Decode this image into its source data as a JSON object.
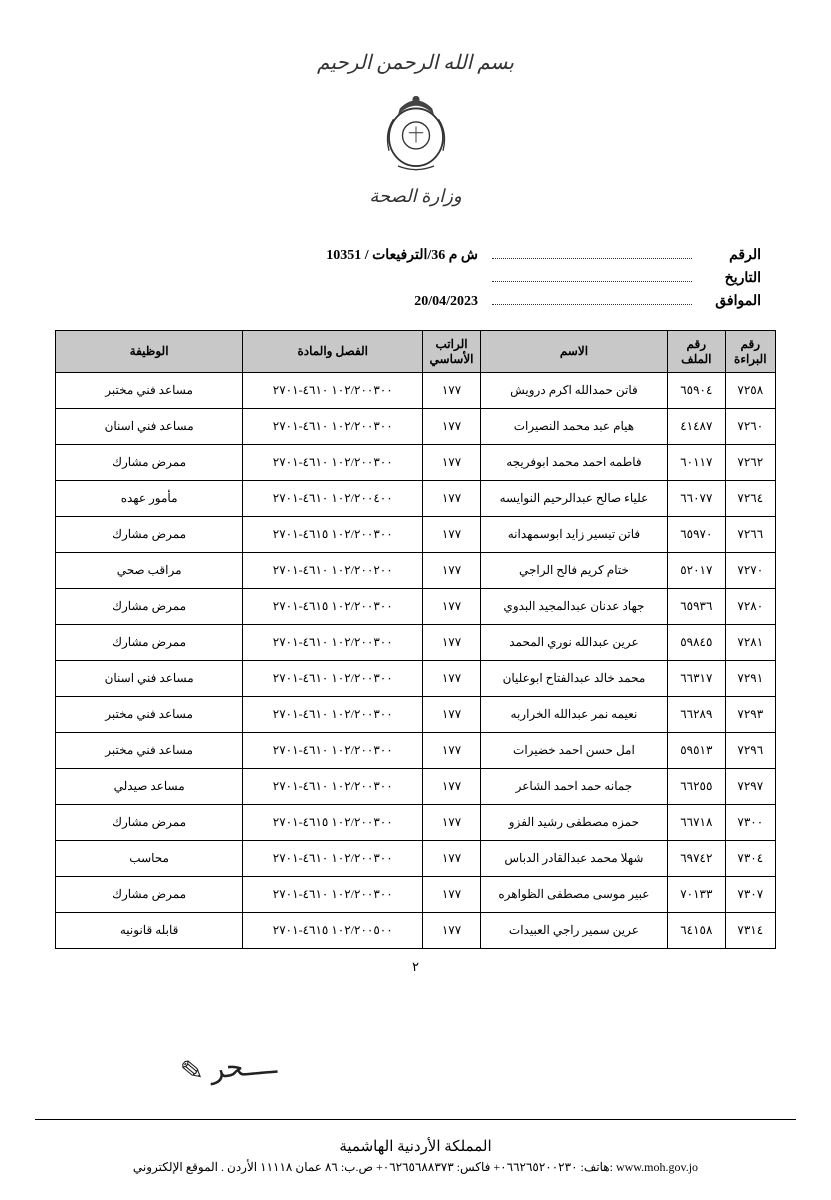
{
  "header": {
    "top_text": "بسم الله الرحمن الرحيم",
    "bottom_text": "وزارة الصحة"
  },
  "meta": {
    "number_label": "الرقم",
    "number_value": "ش م 36/الترفيعات / 10351",
    "date_label": "التاريخ",
    "date_value": "",
    "approve_label": "الموافق",
    "approve_value": "20/04/2023"
  },
  "table": {
    "headers": {
      "serial": "رقم البراءة",
      "file": "رقم الملف",
      "name": "الاسم",
      "salary": "الراتب الأساسي",
      "chapter": "الفصل والمادة",
      "job": "الوظيفة"
    },
    "rows": [
      {
        "serial": "٧٢٥٨",
        "file": "٦٥٩٠٤",
        "name": "فاتن حمدالله اكرم درويش",
        "salary": "١٧٧",
        "chapter": "١٠٢/٢٠٠٣٠٠ ٤٦١٠-٢٧٠١",
        "job": "مساعد فني مختبر"
      },
      {
        "serial": "٧٢٦٠",
        "file": "٤١٤٨٧",
        "name": "هيام عبد محمد النصيرات",
        "salary": "١٧٧",
        "chapter": "١٠٢/٢٠٠٣٠٠ ٤٦١٠-٢٧٠١",
        "job": "مساعد فني اسنان"
      },
      {
        "serial": "٧٢٦٢",
        "file": "٦٠١١٧",
        "name": "فاطمه احمد محمد ابوفريجه",
        "salary": "١٧٧",
        "chapter": "١٠٢/٢٠٠٣٠٠ ٤٦١٠-٢٧٠١",
        "job": "ممرض مشارك"
      },
      {
        "serial": "٧٢٦٤",
        "file": "٦٦٠٧٧",
        "name": "علياء صالح عبدالرحيم النوايسه",
        "salary": "١٧٧",
        "chapter": "١٠٢/٢٠٠٤٠٠ ٤٦١٠-٢٧٠١",
        "job": "مأمور عهده"
      },
      {
        "serial": "٧٢٦٦",
        "file": "٦٥٩٧٠",
        "name": "فاتن تيسير زايد ابوسمهدانه",
        "salary": "١٧٧",
        "chapter": "١٠٢/٢٠٠٣٠٠ ٤٦١٥-٢٧٠١",
        "job": "ممرض مشارك"
      },
      {
        "serial": "٧٢٧٠",
        "file": "٥٢٠١٧",
        "name": "ختام كريم فالح الراجي",
        "salary": "١٧٧",
        "chapter": "١٠٢/٢٠٠٢٠٠ ٤٦١٠-٢٧٠١",
        "job": "مراقب صحي"
      },
      {
        "serial": "٧٢٨٠",
        "file": "٦٥٩٣٦",
        "name": "جهاد عدنان عبدالمجيد البدوي",
        "salary": "١٧٧",
        "chapter": "١٠٢/٢٠٠٣٠٠ ٤٦١٥-٢٧٠١",
        "job": "ممرض مشارك"
      },
      {
        "serial": "٧٢٨١",
        "file": "٥٩٨٤٥",
        "name": "عرين عبدالله نوري المحمد",
        "salary": "١٧٧",
        "chapter": "١٠٢/٢٠٠٣٠٠ ٤٦١٠-٢٧٠١",
        "job": "ممرض مشارك"
      },
      {
        "serial": "٧٢٩١",
        "file": "٦٦٣١٧",
        "name": "محمد خالد عبدالفتاح ابوعليان",
        "salary": "١٧٧",
        "chapter": "١٠٢/٢٠٠٣٠٠ ٤٦١٠-٢٧٠١",
        "job": "مساعد فني اسنان"
      },
      {
        "serial": "٧٢٩٣",
        "file": "٦٦٢٨٩",
        "name": "نعيمه نمر عبدالله الخراربه",
        "salary": "١٧٧",
        "chapter": "١٠٢/٢٠٠٣٠٠ ٤٦١٠-٢٧٠١",
        "job": "مساعد فني مختبر"
      },
      {
        "serial": "٧٢٩٦",
        "file": "٥٩٥١٣",
        "name": "امل حسن احمد خضيرات",
        "salary": "١٧٧",
        "chapter": "١٠٢/٢٠٠٣٠٠ ٤٦١٠-٢٧٠١",
        "job": "مساعد فني مختبر"
      },
      {
        "serial": "٧٢٩٧",
        "file": "٦٦٢٥٥",
        "name": "جمانه حمد احمد الشاعر",
        "salary": "١٧٧",
        "chapter": "١٠٢/٢٠٠٣٠٠ ٤٦١٠-٢٧٠١",
        "job": "مساعد صيدلي"
      },
      {
        "serial": "٧٣٠٠",
        "file": "٦٦٧١٨",
        "name": "حمزه مصطفى رشيد الفزو",
        "salary": "١٧٧",
        "chapter": "١٠٢/٢٠٠٣٠٠ ٤٦١٥-٢٧٠١",
        "job": "ممرض مشارك"
      },
      {
        "serial": "٧٣٠٤",
        "file": "٦٩٧٤٢",
        "name": "شهلا محمد عبدالقادر الدباس",
        "salary": "١٧٧",
        "chapter": "١٠٢/٢٠٠٣٠٠ ٤٦١٠-٢٧٠١",
        "job": "محاسب"
      },
      {
        "serial": "٧٣٠٧",
        "file": "٧٠١٣٣",
        "name": "عبير موسى مصطفى الظواهره",
        "salary": "١٧٧",
        "chapter": "١٠٢/٢٠٠٣٠٠ ٤٦١٠-٢٧٠١",
        "job": "ممرض مشارك"
      },
      {
        "serial": "٧٣١٤",
        "file": "٦٤١٥٨",
        "name": "عرين سمير راجي العبيدات",
        "salary": "١٧٧",
        "chapter": "١٠٢/٢٠٠٥٠٠ ٤٦١٥-٢٧٠١",
        "job": "قابله قانونيه"
      }
    ]
  },
  "page_number": "٢",
  "footer": {
    "line1": "المملكة الأردنية الهاشمية",
    "line2": "هاتف: ٠٦٦٢٦٥٢٠٠٢٣٠+ فاكس: ٠٦٢٦٥٦٨٨٣٧٣+ ص.ب: ٨٦ عمان ١١١١٨ الأردن . الموقع الإلكتروني: www.moh.gov.jo"
  }
}
